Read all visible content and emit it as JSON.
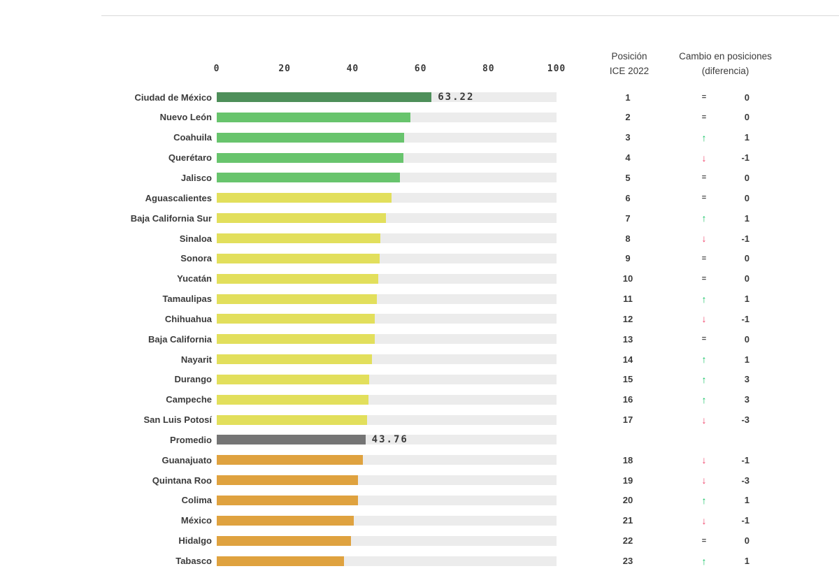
{
  "header": {
    "position_col_line1": "Posición",
    "position_col_line2": "ICE 2022",
    "change_col_line1": "Cambio en posiciones",
    "change_col_line2": "(diferencia)"
  },
  "axis": {
    "ticks": [
      "0",
      "20",
      "40",
      "60",
      "80",
      "100"
    ],
    "min": 0,
    "max": 100
  },
  "colors": {
    "bar_dark_green": "#4e8f5a",
    "bar_green": "#68c46d",
    "bar_yellow": "#e2df5c",
    "bar_gray": "#757575",
    "bar_orange": "#dfa23f",
    "track": "#ececec",
    "arrow_up": "#0ec160",
    "arrow_down": "#f0436a",
    "text": "#3b3b3b"
  },
  "rows": [
    {
      "label": "Ciudad de México",
      "value": 63.22,
      "value_label": "63.22",
      "group": "dark_green",
      "position": "1",
      "change_dir": "equal",
      "change": "0"
    },
    {
      "label": "Nuevo León",
      "value": 57.0,
      "value_label": "",
      "group": "green",
      "position": "2",
      "change_dir": "equal",
      "change": "0"
    },
    {
      "label": "Coahuila",
      "value": 55.2,
      "value_label": "",
      "group": "green",
      "position": "3",
      "change_dir": "up",
      "change": "1"
    },
    {
      "label": "Querétaro",
      "value": 55.0,
      "value_label": "",
      "group": "green",
      "position": "4",
      "change_dir": "down",
      "change": "-1"
    },
    {
      "label": "Jalisco",
      "value": 54.0,
      "value_label": "",
      "group": "green",
      "position": "5",
      "change_dir": "equal",
      "change": "0"
    },
    {
      "label": "Aguascalientes",
      "value": 51.5,
      "value_label": "",
      "group": "yellow",
      "position": "6",
      "change_dir": "equal",
      "change": "0"
    },
    {
      "label": "Baja California Sur",
      "value": 49.8,
      "value_label": "",
      "group": "yellow",
      "position": "7",
      "change_dir": "up",
      "change": "1"
    },
    {
      "label": "Sinaloa",
      "value": 48.1,
      "value_label": "",
      "group": "yellow",
      "position": "8",
      "change_dir": "down",
      "change": "-1"
    },
    {
      "label": "Sonora",
      "value": 47.9,
      "value_label": "",
      "group": "yellow",
      "position": "9",
      "change_dir": "equal",
      "change": "0"
    },
    {
      "label": "Yucatán",
      "value": 47.5,
      "value_label": "",
      "group": "yellow",
      "position": "10",
      "change_dir": "equal",
      "change": "0"
    },
    {
      "label": "Tamaulipas",
      "value": 47.2,
      "value_label": "",
      "group": "yellow",
      "position": "11",
      "change_dir": "up",
      "change": "1"
    },
    {
      "label": "Chihuahua",
      "value": 46.6,
      "value_label": "",
      "group": "yellow",
      "position": "12",
      "change_dir": "down",
      "change": "-1"
    },
    {
      "label": "Baja California",
      "value": 46.5,
      "value_label": "",
      "group": "yellow",
      "position": "13",
      "change_dir": "equal",
      "change": "0"
    },
    {
      "label": "Nayarit",
      "value": 45.6,
      "value_label": "",
      "group": "yellow",
      "position": "14",
      "change_dir": "up",
      "change": "1"
    },
    {
      "label": "Durango",
      "value": 44.9,
      "value_label": "",
      "group": "yellow",
      "position": "15",
      "change_dir": "up",
      "change": "3"
    },
    {
      "label": "Campeche",
      "value": 44.6,
      "value_label": "",
      "group": "yellow",
      "position": "16",
      "change_dir": "up",
      "change": "3"
    },
    {
      "label": "San Luis Potosí",
      "value": 44.2,
      "value_label": "",
      "group": "yellow",
      "position": "17",
      "change_dir": "down",
      "change": "-3"
    },
    {
      "label": "Promedio",
      "value": 43.76,
      "value_label": "43.76",
      "group": "gray",
      "position": "",
      "change_dir": "none",
      "change": ""
    },
    {
      "label": "Guanajuato",
      "value": 43.1,
      "value_label": "",
      "group": "orange",
      "position": "18",
      "change_dir": "down",
      "change": "-1"
    },
    {
      "label": "Quintana Roo",
      "value": 41.5,
      "value_label": "",
      "group": "orange",
      "position": "19",
      "change_dir": "down",
      "change": "-3"
    },
    {
      "label": "Colima",
      "value": 41.5,
      "value_label": "",
      "group": "orange",
      "position": "20",
      "change_dir": "up",
      "change": "1"
    },
    {
      "label": "México",
      "value": 40.3,
      "value_label": "",
      "group": "orange",
      "position": "21",
      "change_dir": "down",
      "change": "-1"
    },
    {
      "label": "Hidalgo",
      "value": 39.5,
      "value_label": "",
      "group": "orange",
      "position": "22",
      "change_dir": "equal",
      "change": "0"
    },
    {
      "label": "Tabasco",
      "value": 37.5,
      "value_label": "",
      "group": "orange",
      "position": "23",
      "change_dir": "up",
      "change": "1"
    }
  ],
  "chart_data": {
    "type": "bar",
    "orientation": "horizontal",
    "title": "",
    "categories": [
      "Ciudad de México",
      "Nuevo León",
      "Coahuila",
      "Querétaro",
      "Jalisco",
      "Aguascalientes",
      "Baja California Sur",
      "Sinaloa",
      "Sonora",
      "Yucatán",
      "Tamaulipas",
      "Chihuahua",
      "Baja California",
      "Nayarit",
      "Durango",
      "Campeche",
      "San Luis Potosí",
      "Promedio",
      "Guanajuato",
      "Quintana Roo",
      "Colima",
      "México",
      "Hidalgo",
      "Tabasco"
    ],
    "values": [
      63.22,
      57.0,
      55.2,
      55.0,
      54.0,
      51.5,
      49.8,
      48.1,
      47.9,
      47.5,
      47.2,
      46.6,
      46.5,
      45.6,
      44.9,
      44.6,
      44.2,
      43.76,
      43.1,
      41.5,
      41.5,
      40.3,
      39.5,
      37.5
    ],
    "value_labels_shown": {
      "Ciudad de México": "63.22",
      "Promedio": "43.76"
    },
    "xlabel": "",
    "ylabel": "",
    "xlim": [
      0,
      100
    ],
    "x_ticks": [
      0,
      20,
      40,
      60,
      80,
      100
    ],
    "grid": false,
    "legend": false,
    "extra_columns": {
      "position_ice_2022": [
        "1",
        "2",
        "3",
        "4",
        "5",
        "6",
        "7",
        "8",
        "9",
        "10",
        "11",
        "12",
        "13",
        "14",
        "15",
        "16",
        "17",
        "",
        "18",
        "19",
        "20",
        "21",
        "22",
        "23"
      ],
      "cambio_en_posiciones": [
        "0",
        "0",
        "1",
        "-1",
        "0",
        "0",
        "1",
        "-1",
        "0",
        "0",
        "1",
        "-1",
        "0",
        "1",
        "3",
        "3",
        "-3",
        "",
        "-1",
        "-3",
        "1",
        "-1",
        "0",
        "1"
      ],
      "cambio_direction": [
        "equal",
        "equal",
        "up",
        "down",
        "equal",
        "equal",
        "up",
        "down",
        "equal",
        "equal",
        "up",
        "down",
        "equal",
        "up",
        "up",
        "up",
        "down",
        "none",
        "down",
        "down",
        "up",
        "down",
        "equal",
        "up"
      ]
    }
  }
}
